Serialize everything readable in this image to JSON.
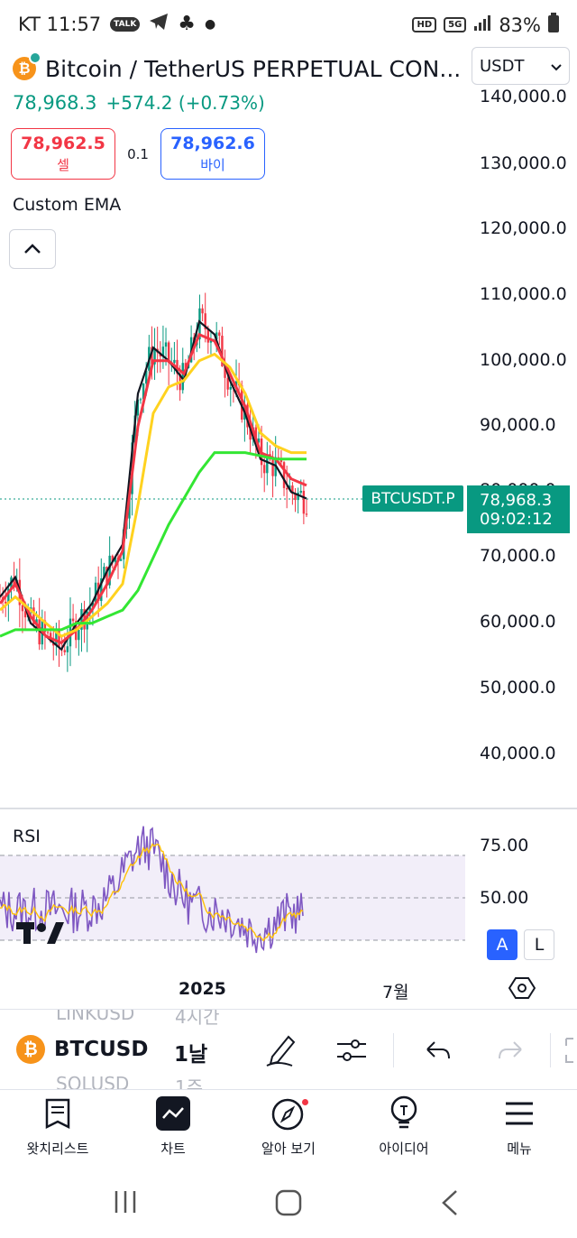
{
  "status": {
    "carrier_time": "KT 11:57",
    "talk": "TALK",
    "hd": "HD",
    "net": "5G",
    "battery": "83%"
  },
  "header": {
    "title": "Bitcoin / TetherUS PERPETUAL CON...",
    "currency": "USDT",
    "last": "78,968.3",
    "change": "+574.2 (+0.73%)"
  },
  "trade": {
    "sell_price": "78,962.5",
    "sell_label": "셀",
    "spread": "0.1",
    "buy_price": "78,962.6",
    "buy_label": "바이"
  },
  "indicator": {
    "name": "Custom EMA"
  },
  "price_axis": [
    "140,000.0",
    "130,000.0",
    "120,000.0",
    "110,000.0",
    "100,000.0",
    "90,000.0",
    "80,000.0",
    "70,000.0",
    "60,000.0",
    "50,000.0",
    "40,000.0"
  ],
  "price_tag": {
    "symbol": "BTCUSDT.P",
    "value": "78,968.3",
    "countdown": "09:02:12"
  },
  "rsi": {
    "label": "RSI",
    "upper": "75.00",
    "mid": "50.00"
  },
  "scale_buttons": {
    "auto": "A",
    "log": "L"
  },
  "time_axis": {
    "year": "2025",
    "month": "7월"
  },
  "toolbar": {
    "ghost_prev_symbol": "LINKUSD",
    "ghost_prev_interval": "4시간",
    "symbol": "BTCUSDT.P",
    "interval": "1날",
    "ghost_next_symbol": "SOLUSD",
    "ghost_next_interval": "1주"
  },
  "nav": [
    "왓치리스트",
    "차트",
    "알아 보기",
    "아이디어",
    "메뉴"
  ],
  "chart_data": {
    "type": "line",
    "title": "",
    "price_axis_range": [
      40000,
      140000
    ],
    "series": [
      {
        "name": "",
        "color": "#131722",
        "values": [
          64000,
          67000,
          60000,
          58000,
          56000,
          60000,
          63000,
          68000,
          72000,
          95000,
          102000,
          100000,
          97000,
          106000,
          104000,
          97000,
          92000,
          85000,
          84000,
          80000,
          79000
        ]
      },
      {
        "name": "",
        "color": "#f23645",
        "values": [
          63000,
          66000,
          61000,
          58000,
          57000,
          59000,
          62000,
          66000,
          71000,
          90000,
          100000,
          100000,
          98000,
          104000,
          103000,
          98000,
          93000,
          86000,
          85000,
          82000,
          81000
        ]
      },
      {
        "name": "",
        "color": "#ffd21f",
        "values": [
          62000,
          64000,
          62000,
          60000,
          58000,
          59000,
          61000,
          63000,
          66000,
          78000,
          92000,
          96000,
          97000,
          100000,
          101000,
          99000,
          95000,
          89000,
          87000,
          86000,
          86000
        ]
      },
      {
        "name": "",
        "color": "#33e633",
        "values": [
          58000,
          59000,
          59000,
          59000,
          59000,
          60000,
          60000,
          61000,
          62000,
          65000,
          70000,
          75000,
          79000,
          83000,
          86000,
          86000,
          86000,
          85500,
          85000,
          85000,
          85000
        ]
      }
    ],
    "rsi_range": [
      25,
      85
    ]
  }
}
